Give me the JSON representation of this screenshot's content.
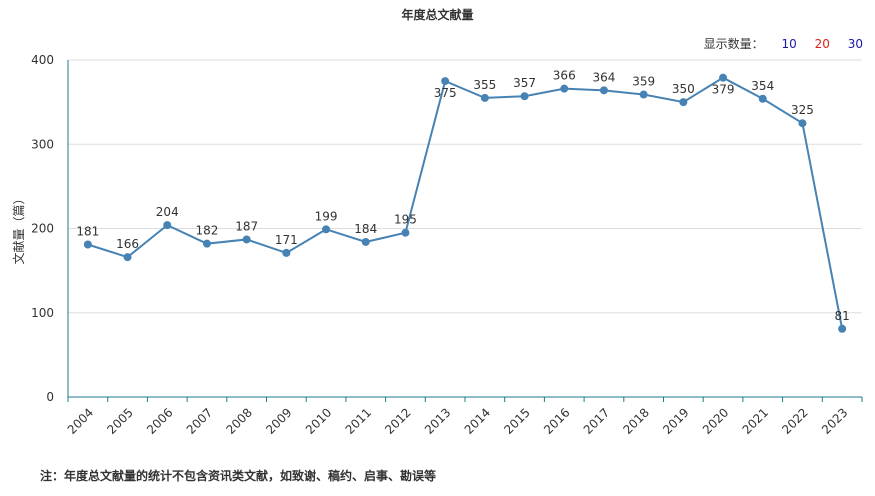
{
  "header": {
    "title": "年度总文献量"
  },
  "display_count": {
    "label": "显示数量：",
    "options": [
      {
        "label": "10",
        "color": "#1a1aa8"
      },
      {
        "label": "20",
        "color": "#d9211e"
      },
      {
        "label": "30",
        "color": "#1a1aa8"
      }
    ]
  },
  "footnote": "注：年度总文献量的统计不包含资讯类文献，如致谢、稿约、启事、勘误等",
  "colors": {
    "line": "#4682b4",
    "grid": "#dddddd",
    "axis": "#1f7a8c"
  },
  "chart_data": {
    "type": "line",
    "title": "年度总文献量",
    "xlabel": "",
    "ylabel": "文献量（篇）",
    "ylim": [
      0,
      400
    ],
    "yticks": [
      0,
      100,
      200,
      300,
      400
    ],
    "grid": true,
    "categories": [
      "2004",
      "2005",
      "2006",
      "2007",
      "2008",
      "2009",
      "2010",
      "2011",
      "2012",
      "2013",
      "2014",
      "2015",
      "2016",
      "2017",
      "2018",
      "2019",
      "2020",
      "2021",
      "2022",
      "2023"
    ],
    "series": [
      {
        "values": [
          181,
          166,
          204,
          182,
          187,
          171,
          199,
          184,
          195,
          375,
          355,
          357,
          366,
          364,
          359,
          350,
          379,
          354,
          325,
          81
        ]
      }
    ]
  }
}
